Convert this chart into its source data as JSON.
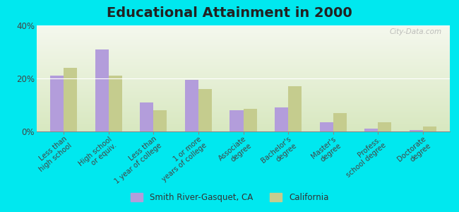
{
  "title": "Educational Attainment in 2000",
  "categories": [
    "Less than\nhigh school",
    "High school\nor equiv.",
    "Less than\n1 year of college",
    "1 or more\nyears of college",
    "Associate\ndegree",
    "Bachelor's\ndegree",
    "Master's\ndegree",
    "Profess.\nschool degree",
    "Doctorate\ndegree"
  ],
  "smith_river": [
    21,
    31,
    11,
    19.5,
    8,
    9,
    3.5,
    1,
    0.5
  ],
  "california": [
    24,
    21,
    8,
    16,
    8.5,
    17,
    7,
    3.5,
    2
  ],
  "color_smith": "#b39ddb",
  "color_california": "#c5cc8e",
  "background_outer": "#00e8ef",
  "background_plot_top": "#f5f8ee",
  "background_plot_bottom": "#d8e8c0",
  "ylim": [
    0,
    40
  ],
  "yticks": [
    0,
    20,
    40
  ],
  "ytick_labels": [
    "0%",
    "20%",
    "40%"
  ],
  "bar_width": 0.3,
  "legend_label_smith": "Smith River-Gasquet, CA",
  "legend_label_california": "California",
  "title_fontsize": 14,
  "watermark": "City-Data.com"
}
